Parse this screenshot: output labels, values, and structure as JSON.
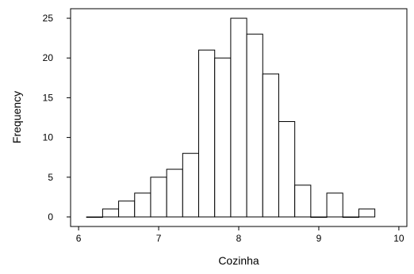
{
  "chart_data": {
    "type": "bar",
    "title": "",
    "xlabel": "Cozinha",
    "ylabel": "Frequency",
    "xlim": [
      5.9,
      10.1
    ],
    "ylim": [
      -1.2,
      26.2
    ],
    "xticks": [
      6,
      7,
      8,
      9,
      10
    ],
    "yticks": [
      0,
      5,
      10,
      15,
      20,
      25
    ],
    "bin_width": 0.2,
    "grid": false,
    "legend": "none",
    "bins": [
      {
        "x": 6.2,
        "count": 0
      },
      {
        "x": 6.4,
        "count": 1
      },
      {
        "x": 6.6,
        "count": 2
      },
      {
        "x": 6.8,
        "count": 3
      },
      {
        "x": 7.0,
        "count": 5
      },
      {
        "x": 7.2,
        "count": 6
      },
      {
        "x": 7.4,
        "count": 8
      },
      {
        "x": 7.6,
        "count": 21
      },
      {
        "x": 7.8,
        "count": 20
      },
      {
        "x": 8.0,
        "count": 25
      },
      {
        "x": 8.2,
        "count": 23
      },
      {
        "x": 8.4,
        "count": 18
      },
      {
        "x": 8.6,
        "count": 12
      },
      {
        "x": 8.8,
        "count": 4
      },
      {
        "x": 9.0,
        "count": 0
      },
      {
        "x": 9.2,
        "count": 3
      },
      {
        "x": 9.4,
        "count": 0
      },
      {
        "x": 9.6,
        "count": 1
      }
    ]
  }
}
